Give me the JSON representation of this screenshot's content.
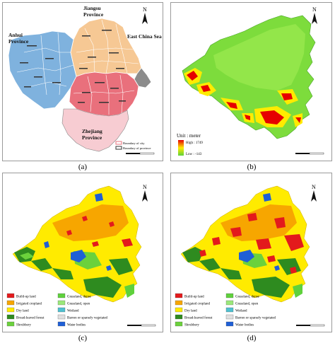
{
  "panel_labels": {
    "a": "(a)",
    "b": "(b)",
    "c": "(c)",
    "d": "(d)"
  },
  "north_label": "N",
  "panel_a": {
    "provinces": {
      "anhui": "Anhui\nProvince",
      "jiangsu": "Jiangsu\nProvince",
      "east_china_sea": "East China Sea",
      "zhejiang": "Zhejiang\nProvince"
    },
    "legend": {
      "city": "Boundary of city",
      "province": "Boundary of province"
    },
    "colors": {
      "anhui": "#7fb2de",
      "jiangsu": "#f6c894",
      "zhejiang": "#e9707c",
      "zhejiang_south": "#f7ccd2",
      "shanghai": "#8c8c8c"
    }
  },
  "panel_b": {
    "legend_title": "Unit : meter",
    "high": "High : 1749",
    "low": "Low : -143",
    "colors": {
      "high": "#e60000",
      "mid": "#ffeb00",
      "low": "#5fd13c"
    }
  },
  "landcover_legend": [
    {
      "label": "Build-up land",
      "color": "#e31a1c"
    },
    {
      "label": "Grassland, dense",
      "color": "#5fd13c"
    },
    {
      "label": "Irrigated cropland",
      "color": "#f7a600"
    },
    {
      "label": "Grassland, open",
      "color": "#9be87a"
    },
    {
      "label": "Dry land",
      "color": "#ffeb00"
    },
    {
      "label": "Wetland",
      "color": "#4fc0d0"
    },
    {
      "label": "Broad-leaved forest",
      "color": "#2e8b1f"
    },
    {
      "label": "Barren or sparsely vegetated",
      "color": "#e0e0e0"
    },
    {
      "label": "Shrubbery",
      "color": "#6bd13c"
    },
    {
      "label": "Water bodies",
      "color": "#1f5fd6"
    }
  ]
}
